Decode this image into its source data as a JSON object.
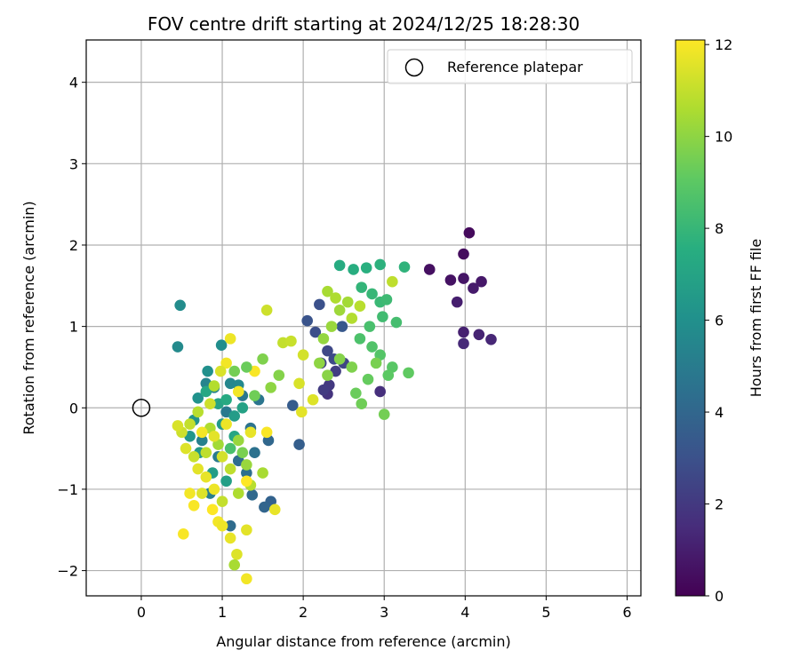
{
  "chart_data": {
    "type": "scatter",
    "title": "FOV centre drift starting at 2024/12/25 18:28:30",
    "xlabel": "Angular distance from reference (arcmin)",
    "ylabel": "Rotation from reference (arcmin)",
    "xlim": [
      -0.68,
      6.17
    ],
    "ylim": [
      -2.31,
      4.52
    ],
    "xticks": [
      0,
      1,
      2,
      3,
      4,
      5,
      6
    ],
    "yticks": [
      -2,
      -1,
      0,
      1,
      2,
      3,
      4
    ],
    "xtick_labels": [
      "0",
      "1",
      "2",
      "3",
      "4",
      "5",
      "6"
    ],
    "ytick_labels": [
      "−2",
      "−1",
      "0",
      "1",
      "2",
      "3",
      "4"
    ],
    "grid": true,
    "legend": {
      "placement": "top-right",
      "label": "Reference platepar"
    },
    "reference_point": {
      "x": 0,
      "y": 0
    },
    "colorbar": {
      "label": "Hours from first FF file",
      "range": [
        0,
        12.1
      ],
      "ticks": [
        0,
        2,
        4,
        6,
        8,
        10,
        12
      ],
      "tick_labels": [
        "0",
        "2",
        "4",
        "6",
        "8",
        "10",
        "12"
      ],
      "colormap": "viridis"
    },
    "points": [
      [
        4.05,
        2.15,
        0.3
      ],
      [
        3.98,
        1.89,
        0.4
      ],
      [
        3.56,
        1.7,
        0.5
      ],
      [
        3.82,
        1.57,
        0.6
      ],
      [
        3.98,
        1.59,
        0.7
      ],
      [
        4.2,
        1.55,
        0.8
      ],
      [
        4.1,
        1.47,
        0.9
      ],
      [
        3.9,
        1.3,
        1.0
      ],
      [
        3.98,
        0.93,
        1.1
      ],
      [
        4.17,
        0.9,
        1.2
      ],
      [
        4.32,
        0.84,
        1.3
      ],
      [
        3.98,
        0.79,
        1.4
      ],
      [
        2.95,
        0.2,
        1.6
      ],
      [
        2.3,
        0.17,
        1.8
      ],
      [
        2.32,
        0.28,
        2.0
      ],
      [
        2.25,
        0.22,
        2.1
      ],
      [
        2.4,
        0.45,
        2.2
      ],
      [
        2.22,
        0.55,
        2.4
      ],
      [
        2.5,
        0.55,
        2.5
      ],
      [
        2.3,
        0.7,
        2.6
      ],
      [
        2.38,
        0.6,
        2.7
      ],
      [
        2.15,
        0.93,
        2.9
      ],
      [
        2.2,
        1.27,
        3.0
      ],
      [
        2.05,
        1.07,
        3.1
      ],
      [
        2.48,
        1.0,
        3.3
      ],
      [
        1.87,
        0.03,
        3.5
      ],
      [
        1.95,
        -0.45,
        3.6
      ],
      [
        1.6,
        -1.15,
        3.8
      ],
      [
        1.52,
        -1.22,
        3.9
      ],
      [
        1.57,
        -0.4,
        4.0
      ],
      [
        1.37,
        -1.07,
        4.1
      ],
      [
        1.1,
        -1.45,
        4.2
      ],
      [
        1.2,
        -0.65,
        4.3
      ],
      [
        1.3,
        -0.8,
        4.4
      ],
      [
        1.4,
        -0.55,
        4.5
      ],
      [
        1.35,
        -0.25,
        4.6
      ],
      [
        1.45,
        0.1,
        4.7
      ],
      [
        1.25,
        0.15,
        4.8
      ],
      [
        1.05,
        -0.05,
        4.9
      ],
      [
        0.95,
        -0.6,
        5.0
      ],
      [
        0.85,
        -1.05,
        5.1
      ],
      [
        0.75,
        -0.4,
        5.2
      ],
      [
        0.9,
        0.25,
        5.3
      ],
      [
        0.8,
        0.3,
        5.4
      ],
      [
        1.1,
        0.3,
        5.5
      ],
      [
        1.2,
        0.28,
        5.6
      ],
      [
        0.45,
        0.75,
        5.7
      ],
      [
        0.48,
        1.26,
        5.8
      ],
      [
        0.99,
        0.77,
        5.9
      ],
      [
        0.82,
        0.45,
        6.0
      ],
      [
        0.7,
        0.12,
        6.1
      ],
      [
        0.65,
        -0.15,
        6.2
      ],
      [
        0.6,
        -0.35,
        6.3
      ],
      [
        0.72,
        -0.55,
        6.4
      ],
      [
        1.0,
        -0.2,
        6.5
      ],
      [
        1.15,
        -0.1,
        6.6
      ],
      [
        0.88,
        -0.8,
        6.7
      ],
      [
        1.05,
        -0.9,
        6.8
      ],
      [
        1.25,
        0.0,
        6.9
      ],
      [
        0.95,
        0.05,
        7.0
      ],
      [
        1.15,
        -0.35,
        7.1
      ],
      [
        0.8,
        0.2,
        7.2
      ],
      [
        1.05,
        0.1,
        7.3
      ],
      [
        2.45,
        1.75,
        7.4
      ],
      [
        2.62,
        1.7,
        7.5
      ],
      [
        2.78,
        1.72,
        7.6
      ],
      [
        2.95,
        1.76,
        7.7
      ],
      [
        3.25,
        1.73,
        7.8
      ],
      [
        2.72,
        1.48,
        7.9
      ],
      [
        2.85,
        1.4,
        8.0
      ],
      [
        2.95,
        1.3,
        8.1
      ],
      [
        3.03,
        1.33,
        8.2
      ],
      [
        2.98,
        1.12,
        8.3
      ],
      [
        3.15,
        1.05,
        8.4
      ],
      [
        2.82,
        1.0,
        8.5
      ],
      [
        2.7,
        0.85,
        8.6
      ],
      [
        2.85,
        0.75,
        8.7
      ],
      [
        2.95,
        0.65,
        8.8
      ],
      [
        3.1,
        0.5,
        8.9
      ],
      [
        3.05,
        0.4,
        9.0
      ],
      [
        3.3,
        0.43,
        9.1
      ],
      [
        2.8,
        0.35,
        9.2
      ],
      [
        2.65,
        0.18,
        9.3
      ],
      [
        2.72,
        0.05,
        9.4
      ],
      [
        3.0,
        -0.08,
        9.5
      ],
      [
        2.9,
        0.55,
        9.6
      ],
      [
        2.6,
        0.5,
        9.7
      ],
      [
        2.45,
        0.6,
        9.8
      ],
      [
        2.3,
        0.4,
        9.9
      ],
      [
        2.2,
        0.55,
        10.0
      ],
      [
        2.25,
        0.85,
        10.1
      ],
      [
        2.35,
        1.0,
        10.2
      ],
      [
        2.45,
        1.2,
        10.3
      ],
      [
        2.55,
        1.3,
        10.4
      ],
      [
        2.3,
        1.43,
        10.5
      ],
      [
        2.4,
        1.35,
        10.6
      ],
      [
        2.6,
        1.1,
        10.7
      ],
      [
        2.7,
        1.25,
        10.8
      ],
      [
        3.1,
        1.55,
        10.9
      ],
      [
        1.75,
        0.8,
        11.0
      ],
      [
        1.85,
        0.82,
        11.1
      ],
      [
        1.55,
        1.2,
        11.2
      ],
      [
        2.0,
        0.65,
        11.3
      ],
      [
        1.95,
        0.3,
        11.4
      ],
      [
        2.12,
        0.1,
        11.5
      ],
      [
        1.98,
        -0.05,
        11.6
      ],
      [
        1.65,
        -1.25,
        11.7
      ],
      [
        1.1,
        0.85,
        11.8
      ],
      [
        1.05,
        0.55,
        11.9
      ],
      [
        1.4,
        0.45,
        12.0
      ],
      [
        1.3,
        0.5,
        9.3
      ],
      [
        1.15,
        0.45,
        9.5
      ],
      [
        1.5,
        0.6,
        9.7
      ],
      [
        1.7,
        0.4,
        9.8
      ],
      [
        1.6,
        0.25,
        10.0
      ],
      [
        1.2,
        -0.4,
        10.2
      ],
      [
        0.95,
        -0.45,
        10.4
      ],
      [
        0.85,
        -0.25,
        10.6
      ],
      [
        0.7,
        -0.05,
        10.8
      ],
      [
        0.6,
        -0.2,
        11.0
      ],
      [
        0.5,
        -0.3,
        11.2
      ],
      [
        0.45,
        -0.22,
        11.4
      ],
      [
        0.55,
        -0.5,
        11.5
      ],
      [
        0.7,
        -0.75,
        11.6
      ],
      [
        0.8,
        -0.85,
        11.7
      ],
      [
        0.9,
        -1.0,
        11.8
      ],
      [
        0.6,
        -1.05,
        11.9
      ],
      [
        0.65,
        -1.2,
        12.0
      ],
      [
        0.88,
        -1.25,
        12.1
      ],
      [
        0.95,
        -1.4,
        11.9
      ],
      [
        1.0,
        -1.45,
        11.8
      ],
      [
        1.1,
        -1.6,
        11.7
      ],
      [
        0.52,
        -1.55,
        12.0
      ],
      [
        1.3,
        -1.5,
        11.6
      ],
      [
        1.18,
        -1.8,
        11.5
      ],
      [
        1.15,
        -1.93,
        10.5
      ],
      [
        1.3,
        -2.1,
        11.9
      ],
      [
        1.35,
        -0.95,
        10.8
      ],
      [
        1.5,
        -0.8,
        10.5
      ],
      [
        1.3,
        -0.7,
        10.2
      ],
      [
        1.1,
        -0.75,
        10.9
      ],
      [
        1.0,
        -0.6,
        11.3
      ],
      [
        0.9,
        -0.35,
        11.6
      ],
      [
        1.05,
        -0.2,
        11.8
      ],
      [
        1.2,
        0.2,
        11.9
      ],
      [
        1.35,
        -0.3,
        11.7
      ],
      [
        1.55,
        -0.3,
        12.0
      ],
      [
        0.98,
        0.45,
        11.4
      ],
      [
        0.9,
        0.27,
        10.7
      ],
      [
        0.85,
        0.05,
        11.2
      ],
      [
        0.75,
        -0.3,
        11.9
      ],
      [
        0.65,
        -0.6,
        11.1
      ],
      [
        0.8,
        -0.55,
        10.9
      ],
      [
        1.25,
        -0.55,
        9.6
      ],
      [
        1.1,
        -0.5,
        8.5
      ],
      [
        1.4,
        0.15,
        9.4
      ],
      [
        1.0,
        -1.15,
        11.0
      ],
      [
        1.2,
        -1.05,
        10.6
      ],
      [
        1.3,
        -0.9,
        12.1
      ],
      [
        0.75,
        -1.05,
        11.5
      ]
    ]
  }
}
